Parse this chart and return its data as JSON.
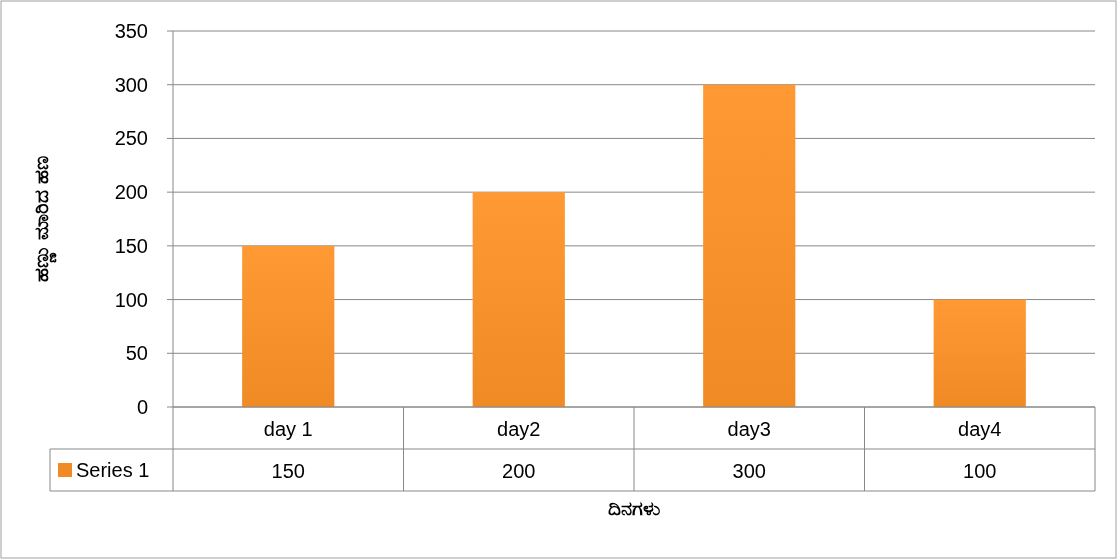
{
  "chart_data": {
    "type": "bar",
    "xlabel": "ದಿನಗಳು",
    "ylabel": "ಹಣ್ಣು ಮಾರಿದ ಹಣ",
    "categories": [
      "day 1",
      "day2",
      "day3",
      "day4"
    ],
    "series": [
      {
        "name": "Series 1",
        "color": "#f08a24",
        "values": [
          150,
          200,
          300,
          100
        ]
      }
    ],
    "ylim": [
      0,
      350
    ],
    "yticks": [
      0,
      50,
      100,
      150,
      200,
      250,
      300,
      350
    ],
    "grid": "y",
    "data_labels": true,
    "legend": "bottom"
  }
}
